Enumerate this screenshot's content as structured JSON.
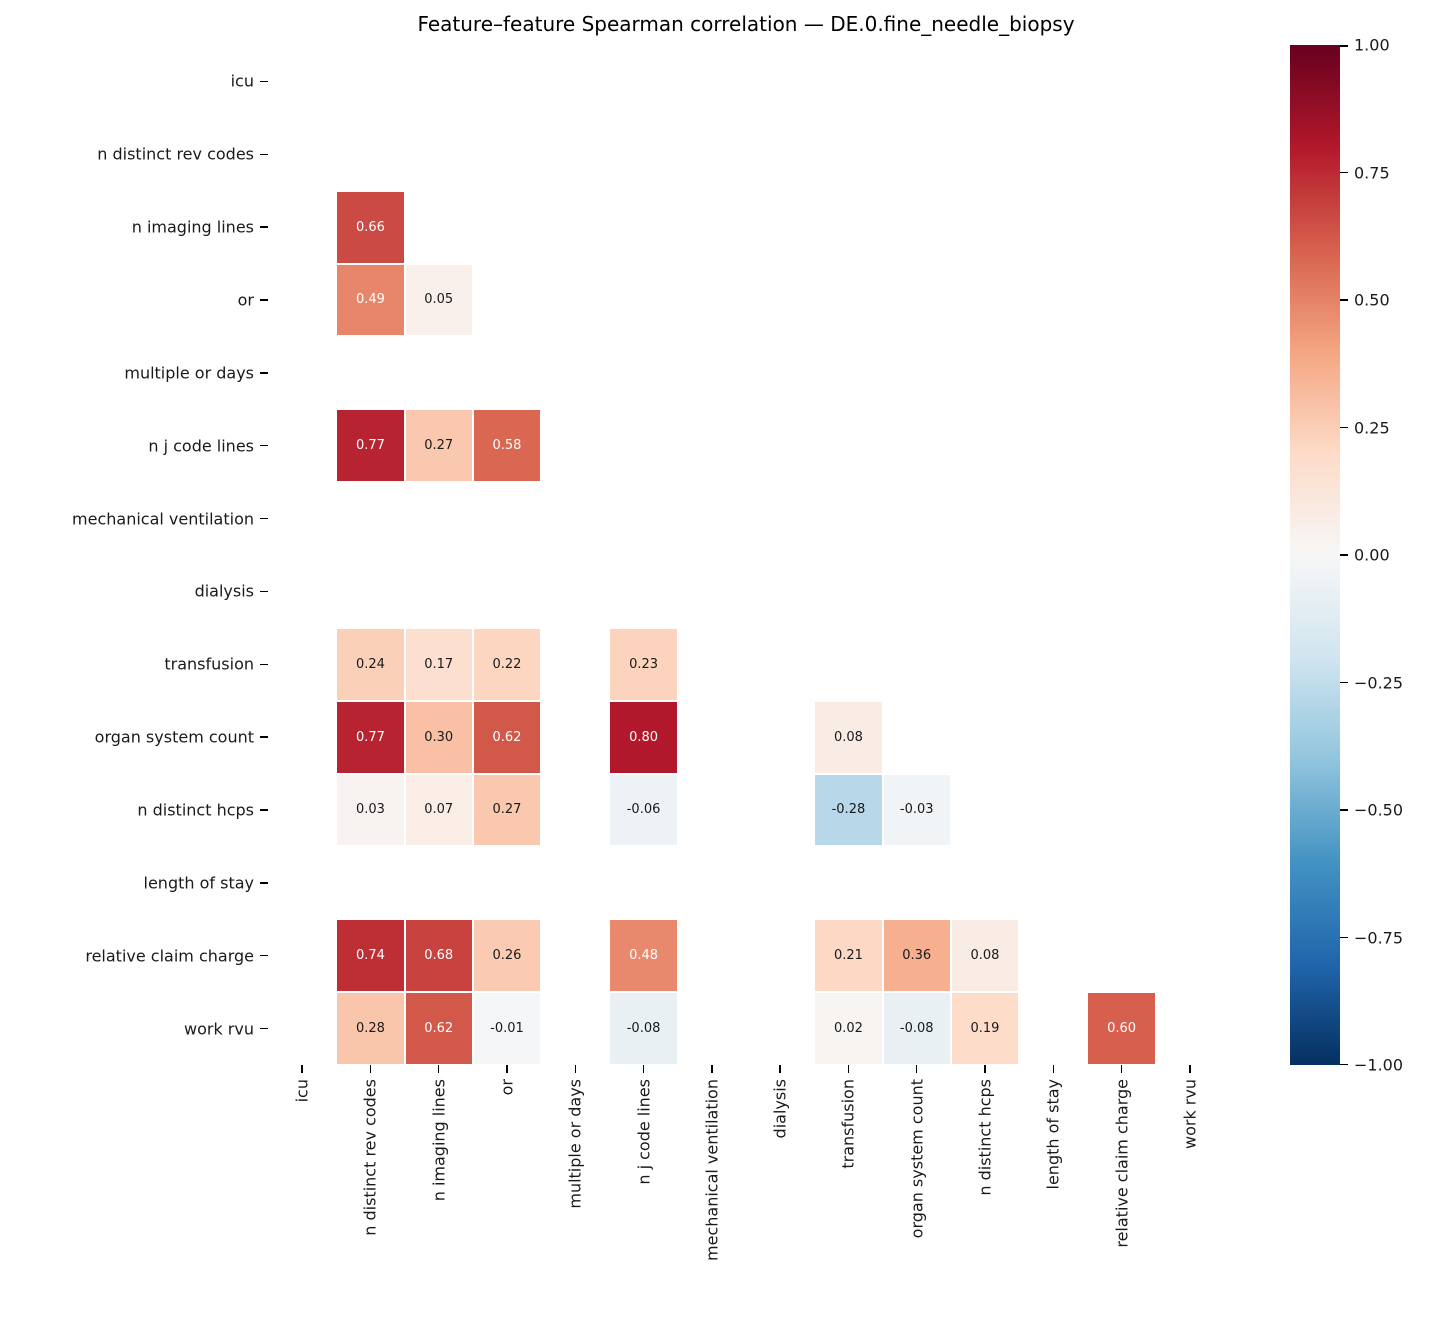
{
  "chart_data": {
    "type": "heatmap",
    "title": "Feature–feature Spearman correlation — DE.0.fine_needle_biopsy",
    "labels": [
      "icu",
      "n distinct rev codes",
      "n imaging lines",
      "or",
      "multiple or days",
      "n j code lines",
      "mechanical ventilation",
      "dialysis",
      "transfusion",
      "organ system count",
      "n distinct hcps",
      "length of stay",
      "relative claim charge",
      "work rvu"
    ],
    "matrix": [
      [
        null,
        null,
        null,
        null,
        null,
        null,
        null,
        null,
        null,
        null,
        null,
        null,
        null,
        null
      ],
      [
        null,
        null,
        null,
        null,
        null,
        null,
        null,
        null,
        null,
        null,
        null,
        null,
        null,
        null
      ],
      [
        null,
        0.66,
        null,
        null,
        null,
        null,
        null,
        null,
        null,
        null,
        null,
        null,
        null,
        null
      ],
      [
        null,
        0.49,
        0.05,
        null,
        null,
        null,
        null,
        null,
        null,
        null,
        null,
        null,
        null,
        null
      ],
      [
        null,
        null,
        null,
        null,
        null,
        null,
        null,
        null,
        null,
        null,
        null,
        null,
        null,
        null
      ],
      [
        null,
        0.77,
        0.27,
        0.58,
        null,
        null,
        null,
        null,
        null,
        null,
        null,
        null,
        null,
        null
      ],
      [
        null,
        null,
        null,
        null,
        null,
        null,
        null,
        null,
        null,
        null,
        null,
        null,
        null,
        null
      ],
      [
        null,
        null,
        null,
        null,
        null,
        null,
        null,
        null,
        null,
        null,
        null,
        null,
        null,
        null
      ],
      [
        null,
        0.24,
        0.17,
        0.22,
        null,
        0.23,
        null,
        null,
        null,
        null,
        null,
        null,
        null,
        null
      ],
      [
        null,
        0.77,
        0.3,
        0.62,
        null,
        0.8,
        null,
        null,
        0.08,
        null,
        null,
        null,
        null,
        null
      ],
      [
        null,
        0.03,
        0.07,
        0.27,
        null,
        -0.06,
        null,
        null,
        -0.28,
        -0.03,
        null,
        null,
        null,
        null
      ],
      [
        null,
        null,
        null,
        null,
        null,
        null,
        null,
        null,
        null,
        null,
        null,
        null,
        null,
        null
      ],
      [
        null,
        0.74,
        0.68,
        0.26,
        null,
        0.48,
        null,
        null,
        0.21,
        0.36,
        0.08,
        null,
        null,
        null
      ],
      [
        null,
        0.28,
        0.62,
        -0.01,
        null,
        -0.08,
        null,
        null,
        0.02,
        -0.08,
        0.19,
        null,
        0.6,
        null
      ]
    ],
    "vmin": -1.0,
    "vmax": 1.0,
    "grid": false,
    "colormap": {
      "name": "RdBu_r",
      "anchors": [
        "#053061",
        "#2166ac",
        "#4393c3",
        "#92c5de",
        "#d1e5f0",
        "#f7f7f7",
        "#fddbc7",
        "#f4a582",
        "#d6604d",
        "#b2182b",
        "#67001f"
      ]
    },
    "colorbar": {
      "position": "right",
      "ticks": [
        1.0,
        0.75,
        0.5,
        0.25,
        0.0,
        -0.25,
        -0.5,
        -0.75,
        -1.0
      ],
      "tick_labels": [
        "1.00",
        "0.75",
        "0.50",
        "0.25",
        "0.00",
        "−0.25",
        "−0.50",
        "−0.75",
        "−1.00"
      ]
    },
    "annotation_decimals": 2
  }
}
